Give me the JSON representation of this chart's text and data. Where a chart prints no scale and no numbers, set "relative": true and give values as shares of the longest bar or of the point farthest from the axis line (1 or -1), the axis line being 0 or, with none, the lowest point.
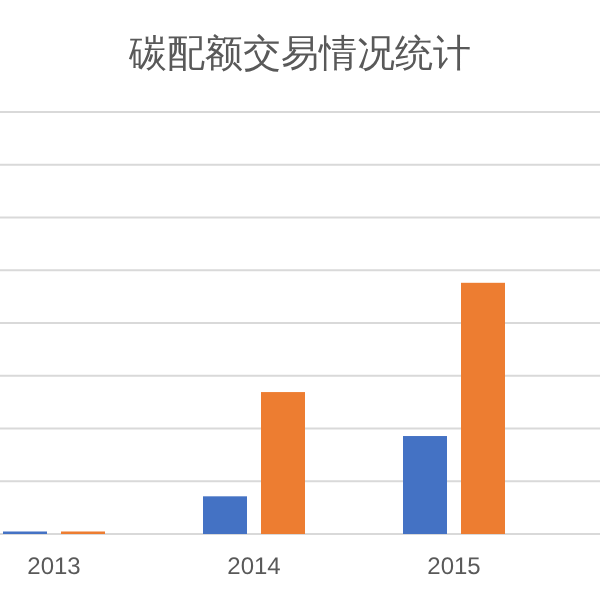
{
  "chart_data": {
    "type": "bar",
    "title": "碳配额交易情况统计",
    "relative": true,
    "grid": "y",
    "categories": [
      "2013",
      "2014",
      "2015"
    ],
    "series": [
      {
        "color": "#4472c4",
        "values": [
          0.01,
          0.15,
          0.39
        ]
      },
      {
        "color": "#ed7d31",
        "values": [
          0.01,
          0.565,
          1
        ]
      }
    ]
  }
}
